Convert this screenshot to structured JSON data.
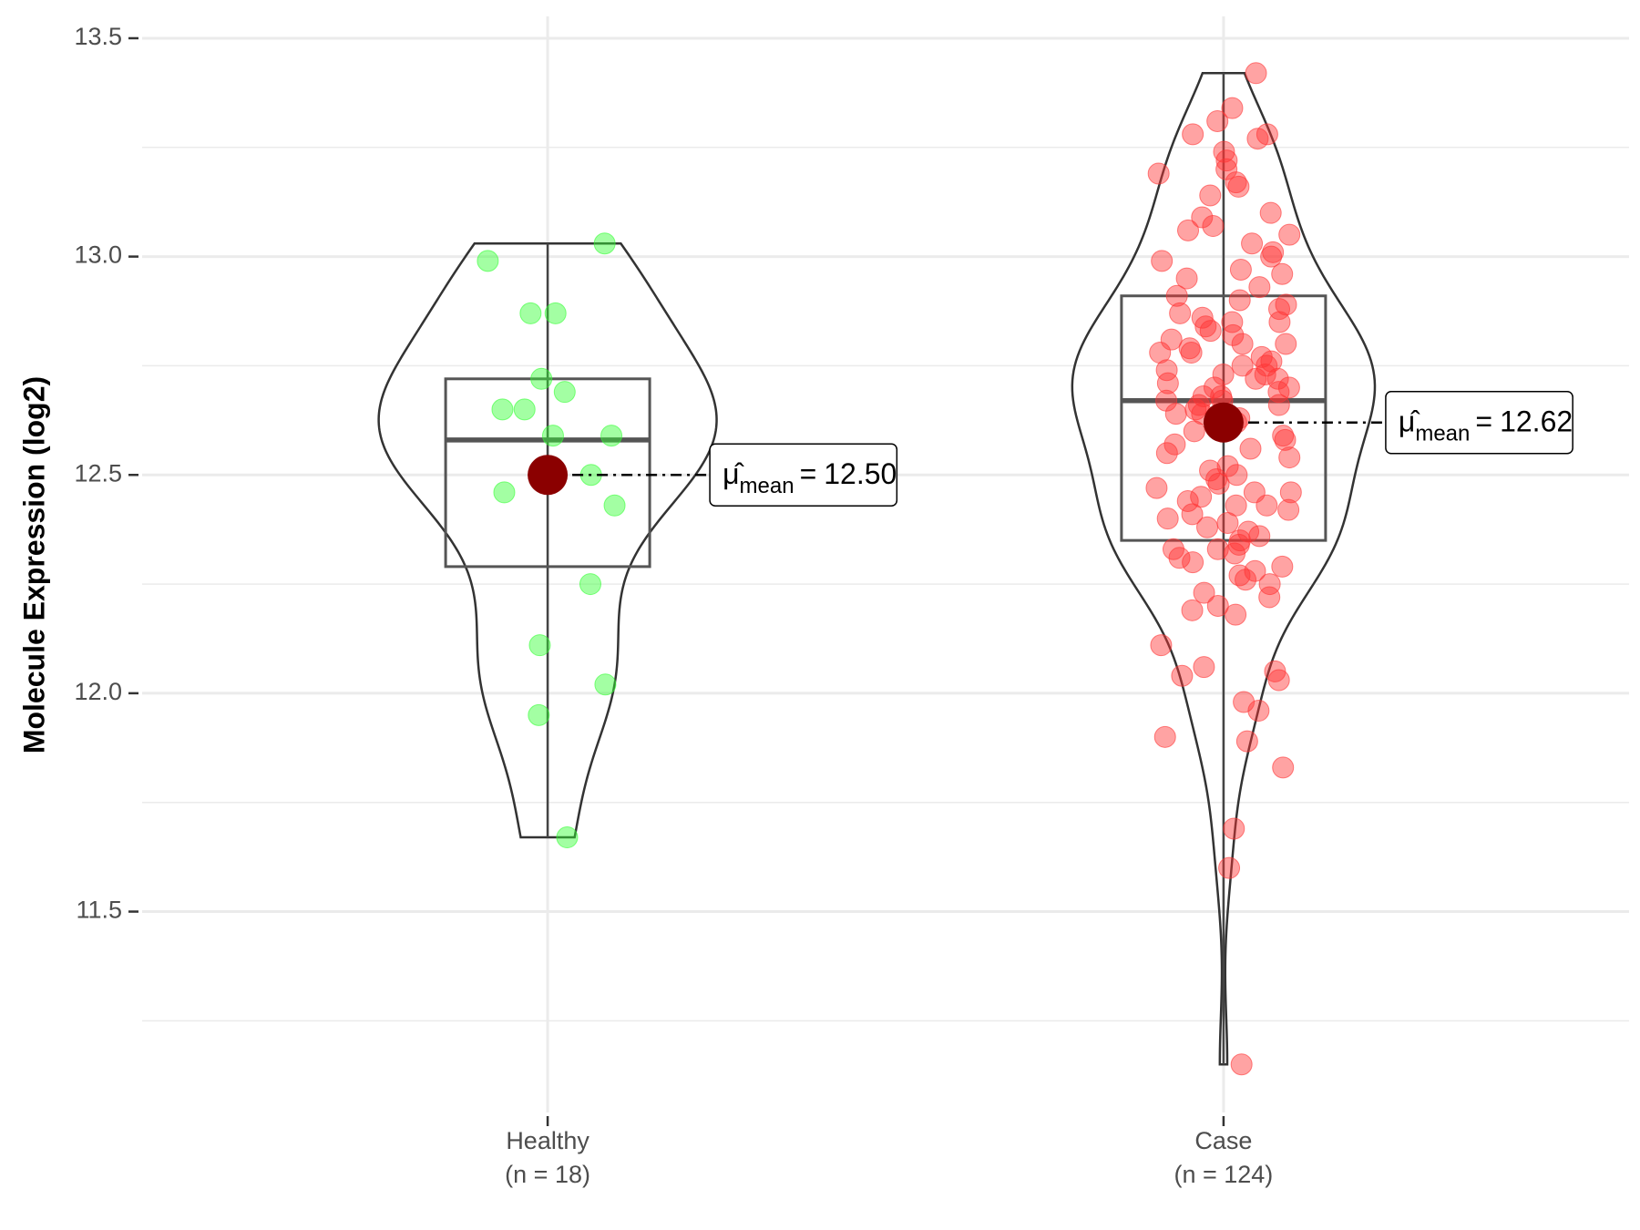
{
  "chart_data": {
    "type": "violin",
    "y_label": "Molecule Expression (log2)",
    "categories": [
      "Healthy",
      "Case"
    ],
    "category_counts": [
      "(n = 18)",
      "(n = 124)"
    ],
    "ylim": [
      11.04,
      13.55
    ],
    "yticks": [
      11.5,
      {
        "value": 12,
        "label": "12.0"
      },
      12.5,
      {
        "value": 13,
        "label": "13.0"
      },
      13.5
    ],
    "minor_yticks": [
      11.25,
      11.75,
      12.25,
      12.75,
      13.25
    ],
    "grid": true,
    "mean_symbol": "μ̂",
    "mean_subscript": "mean",
    "mean_equals": "=",
    "mean_color": "#8b0000",
    "groups": [
      {
        "color": "#33ff33",
        "values": [
          13.03,
          12.99,
          12.87,
          12.87,
          12.72,
          12.69,
          12.65,
          12.65,
          12.59,
          12.59,
          12.5,
          12.46,
          12.43,
          12.25,
          12.11,
          12.02,
          11.95,
          11.67
        ],
        "box": {
          "min": 11.67,
          "q1": 12.29,
          "median": 12.58,
          "q3": 12.72,
          "max": 13.03
        },
        "mean": 12.5,
        "mean_label": "12.50"
      },
      {
        "color": "#ff3333",
        "values": [
          13.42,
          13.34,
          13.31,
          13.28,
          13.28,
          13.27,
          13.24,
          13.22,
          13.2,
          13.19,
          13.17,
          13.16,
          13.14,
          13.1,
          13.09,
          13.07,
          13.06,
          13.05,
          13.03,
          13.01,
          13.0,
          12.99,
          12.97,
          12.96,
          12.95,
          12.93,
          12.91,
          12.88,
          12.87,
          12.86,
          12.85,
          12.84,
          12.83,
          12.82,
          12.81,
          12.8,
          12.8,
          12.79,
          12.78,
          12.77,
          12.76,
          12.75,
          12.74,
          12.73,
          12.73,
          12.72,
          12.71,
          12.7,
          12.7,
          12.69,
          12.68,
          12.68,
          12.67,
          12.67,
          12.66,
          12.65,
          12.64,
          12.63,
          12.62,
          12.61,
          12.6,
          12.59,
          12.58,
          12.57,
          12.56,
          12.55,
          12.54,
          12.52,
          12.51,
          12.5,
          12.49,
          12.48,
          12.47,
          12.46,
          12.45,
          12.44,
          12.43,
          12.42,
          12.41,
          12.4,
          12.39,
          12.38,
          12.37,
          12.36,
          12.35,
          12.34,
          12.33,
          12.33,
          12.32,
          12.31,
          12.3,
          12.29,
          12.27,
          12.26,
          12.25,
          12.23,
          12.22,
          12.2,
          12.19,
          12.18,
          12.11,
          12.06,
          12.05,
          12.04,
          12.03,
          11.98,
          11.96,
          11.9,
          11.89,
          11.83,
          11.69,
          11.6,
          11.15,
          12.9,
          12.89,
          12.85,
          12.78,
          12.75,
          12.72,
          12.66,
          12.64,
          12.46,
          12.43,
          12.28
        ],
        "box": {
          "min": 11.15,
          "q1": 12.35,
          "median": 12.67,
          "q3": 12.91,
          "max": 13.42
        },
        "mean": 12.62,
        "mean_label": "12.62"
      }
    ]
  }
}
